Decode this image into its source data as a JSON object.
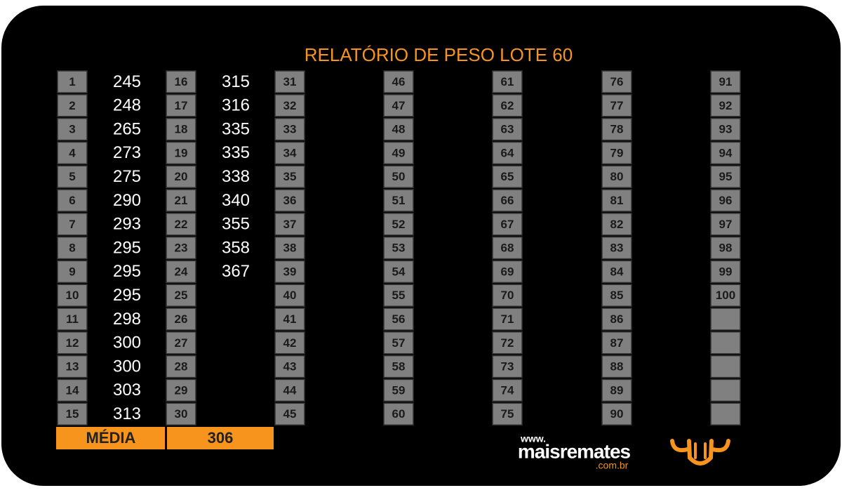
{
  "title": "RELATÓRIO DE PESO LOTE  60",
  "columns": [
    {
      "numbers": [
        1,
        2,
        3,
        4,
        5,
        6,
        7,
        8,
        9,
        10,
        11,
        12,
        13,
        14,
        15
      ],
      "weights": [
        245,
        248,
        265,
        273,
        275,
        290,
        293,
        295,
        295,
        295,
        298,
        300,
        300,
        303,
        313
      ]
    },
    {
      "numbers": [
        16,
        17,
        18,
        19,
        20,
        21,
        22,
        23,
        24,
        25,
        26,
        27,
        28,
        29,
        30
      ],
      "weights": [
        315,
        316,
        335,
        335,
        338,
        340,
        355,
        358,
        367
      ]
    },
    {
      "numbers": [
        31,
        32,
        33,
        34,
        35,
        36,
        37,
        38,
        39,
        40,
        41,
        42,
        43,
        44,
        45
      ]
    },
    {
      "numbers": [
        46,
        47,
        48,
        49,
        50,
        51,
        52,
        53,
        54,
        55,
        56,
        57,
        58,
        59,
        60
      ]
    },
    {
      "numbers": [
        61,
        62,
        63,
        64,
        65,
        66,
        67,
        68,
        69,
        70,
        71,
        72,
        73,
        74,
        75
      ]
    },
    {
      "numbers": [
        76,
        77,
        78,
        79,
        80,
        81,
        82,
        83,
        84,
        85,
        86,
        87,
        88,
        89,
        90
      ]
    },
    {
      "numbers": [
        91,
        92,
        93,
        94,
        95,
        96,
        97,
        98,
        99,
        100
      ]
    }
  ],
  "average": {
    "label": "MÉDIA",
    "value": 306
  },
  "logo": {
    "prefix": "www.",
    "name": "maisremates",
    "suffix": ".com.br"
  }
}
